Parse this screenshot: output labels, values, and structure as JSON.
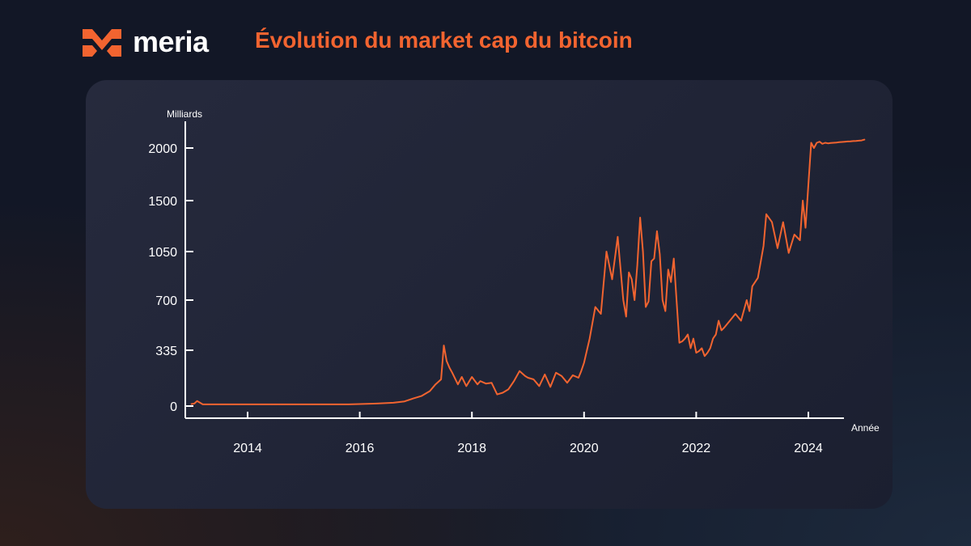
{
  "brand": {
    "name": "meria",
    "logo_icon": "meria-logo-icon",
    "accent_color": "#f26430"
  },
  "title": "Évolution du market cap du bitcoin",
  "chart_data": {
    "type": "line",
    "title": "Évolution du market cap du bitcoin",
    "ylabel": "Milliards",
    "xlabel": "Année",
    "y_ticks": [
      0,
      335,
      700,
      1050,
      1500,
      2000
    ],
    "x_ticks": [
      2014,
      2016,
      2018,
      2020,
      2022,
      2024
    ],
    "xlim": [
      2013.0,
      2025.0
    ],
    "ylim": [
      0,
      2000
    ],
    "grid": false,
    "line_color": "#f26430",
    "series": [
      {
        "x": [
          2013.0,
          2013.05,
          2013.1,
          2013.2,
          2013.4,
          2013.8,
          2014.2,
          2014.6,
          2015.0,
          2015.4,
          2015.8,
          2016.0,
          2016.3,
          2016.6,
          2016.8,
          2016.95,
          2017.1,
          2017.25,
          2017.35,
          2017.45,
          2017.5,
          2017.55,
          2017.6,
          2017.65,
          2017.75,
          2017.82,
          2017.9,
          2018.0,
          2018.1,
          2018.15,
          2018.25,
          2018.35,
          2018.45,
          2018.55,
          2018.65,
          2018.75,
          2018.85,
          2018.95,
          2019.0,
          2019.1,
          2019.2,
          2019.3,
          2019.4,
          2019.5,
          2019.6,
          2019.7,
          2019.8,
          2019.9,
          2019.95,
          2020.0,
          2020.1,
          2020.2,
          2020.3,
          2020.4,
          2020.5,
          2020.6,
          2020.7,
          2020.75,
          2020.8,
          2020.85,
          2020.9,
          2020.95,
          2021.0,
          2021.05,
          2021.1,
          2021.15,
          2021.2,
          2021.25,
          2021.3,
          2021.35,
          2021.4,
          2021.45,
          2021.5,
          2021.55,
          2021.6,
          2021.65,
          2021.7,
          2021.75,
          2021.8,
          2021.85,
          2021.9,
          2021.95,
          2022.0,
          2022.05,
          2022.1,
          2022.15,
          2022.2,
          2022.25,
          2022.3,
          2022.35,
          2022.4,
          2022.45,
          2022.5,
          2022.6,
          2022.7,
          2022.8,
          2022.9,
          2022.95,
          2023.0,
          2023.1,
          2023.2,
          2023.25,
          2023.35,
          2023.45,
          2023.55,
          2023.65,
          2023.75,
          2023.85,
          2023.9,
          2023.95,
          2024.0,
          2024.05,
          2024.1,
          2024.15,
          2024.2,
          2024.25,
          2024.3,
          2024.35,
          2024.4,
          2024.45,
          2024.5,
          2024.55,
          2024.6,
          2024.65,
          2024.7,
          2024.75,
          2024.8,
          2024.85,
          2024.9,
          2024.95,
          2025.0
        ],
        "y": [
          12,
          15,
          30,
          10,
          10,
          10,
          10,
          10,
          10,
          10,
          10,
          12,
          15,
          20,
          28,
          45,
          60,
          90,
          130,
          160,
          370,
          270,
          230,
          200,
          130,
          175,
          120,
          175,
          130,
          150,
          135,
          140,
          70,
          80,
          100,
          150,
          210,
          180,
          170,
          160,
          120,
          190,
          115,
          200,
          180,
          140,
          185,
          170,
          210,
          260,
          420,
          650,
          600,
          1050,
          850,
          1180,
          700,
          580,
          900,
          850,
          700,
          950,
          1350,
          1050,
          650,
          690,
          980,
          1000,
          1230,
          1030,
          700,
          620,
          920,
          830,
          1000,
          700,
          390,
          400,
          420,
          450,
          350,
          420,
          320,
          330,
          350,
          300,
          320,
          350,
          420,
          450,
          550,
          480,
          500,
          550,
          600,
          550,
          700,
          620,
          800,
          860,
          1100,
          1380,
          1310,
          1080,
          1310,
          1040,
          1200,
          1150,
          1500,
          1260,
          1650,
          2050,
          2000,
          2050,
          2060,
          2040,
          2050,
          2045,
          2048,
          2050,
          2052,
          2055,
          2058,
          2060,
          2062,
          2064,
          2066,
          2068,
          2070,
          2072,
          2080
        ]
      }
    ]
  }
}
